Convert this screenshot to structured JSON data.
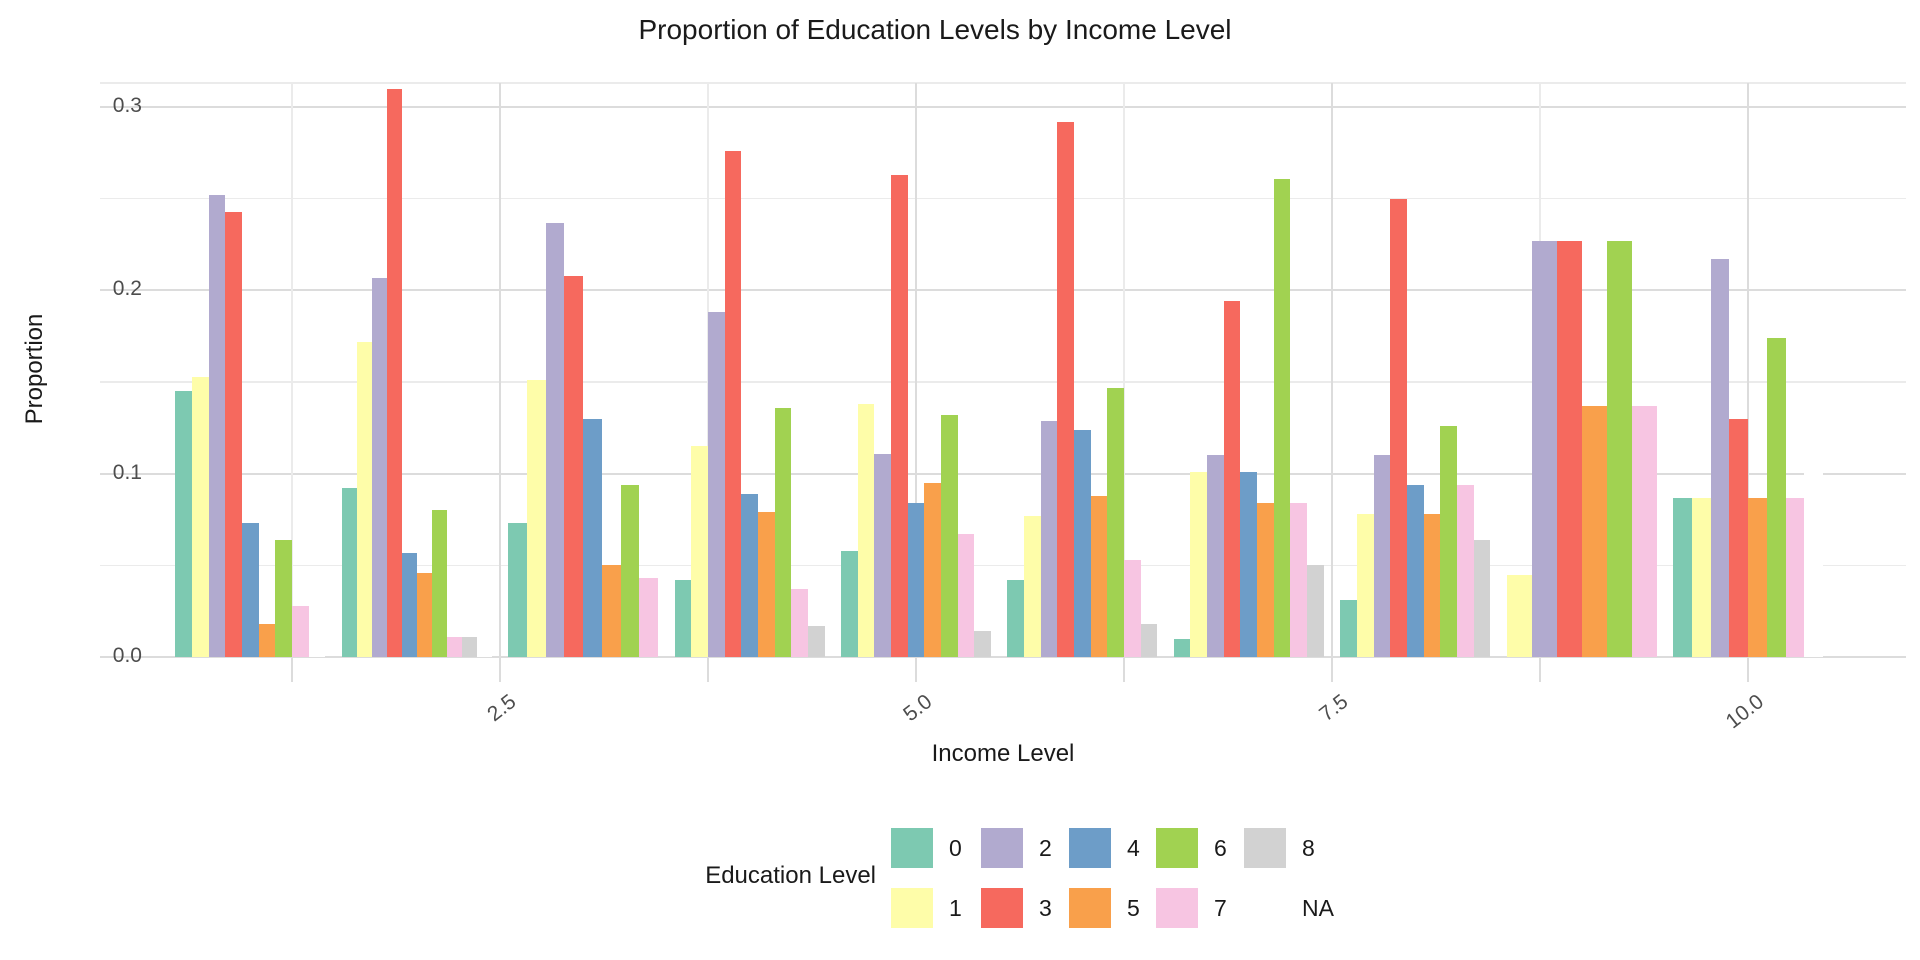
{
  "title": "Proportion of Education Levels by Income Level",
  "y_axis": {
    "title": "Proportion",
    "tick_labels": [
      "0.0",
      "0.1",
      "0.2",
      "0.3"
    ],
    "tick_values": [
      0.0,
      0.1,
      0.2,
      0.3
    ],
    "minor_values": [
      0.05,
      0.15,
      0.25
    ]
  },
  "x_axis": {
    "title": "Income Level",
    "tick_labels": [
      "2.5",
      "5.0",
      "7.5",
      "10.0"
    ],
    "tick_values": [
      2.5,
      5.0,
      7.5,
      10.0
    ],
    "minor_values": [
      1.25,
      3.75,
      6.25,
      8.75
    ],
    "small_tick_values": [
      1.25,
      2.5,
      3.75,
      5.0,
      6.25,
      7.5,
      8.75,
      10.0
    ]
  },
  "legend": {
    "title": "Education Level",
    "entries": [
      {
        "label": "0",
        "color": "#7DC9B1"
      },
      {
        "label": "1",
        "color": "#FEFDA9"
      },
      {
        "label": "2",
        "color": "#B1AACF"
      },
      {
        "label": "3",
        "color": "#F6695E"
      },
      {
        "label": "4",
        "color": "#6D9DC8"
      },
      {
        "label": "5",
        "color": "#F9A04B"
      },
      {
        "label": "6",
        "color": "#A1D251"
      },
      {
        "label": "7",
        "color": "#F7C5E2"
      },
      {
        "label": "8",
        "color": "#D2D2D2"
      },
      {
        "label": "NA",
        "color": "#FFFFFF"
      }
    ]
  },
  "chart_data": {
    "type": "bar",
    "title": "Proportion of Education Levels by Income Level",
    "xlabel": "Income Level",
    "ylabel": "Proportion",
    "ylim": [
      0,
      0.31
    ],
    "xlim": [
      0.55,
      10.95
    ],
    "grid": true,
    "legend_position": "bottom",
    "series_name": "Education Level",
    "groups": [
      {
        "income": 1,
        "bars": [
          {
            "level": "0",
            "value": 0.145
          },
          {
            "level": "1",
            "value": 0.153
          },
          {
            "level": "2",
            "value": 0.252
          },
          {
            "level": "3",
            "value": 0.243
          },
          {
            "level": "4",
            "value": 0.073
          },
          {
            "level": "5",
            "value": 0.018
          },
          {
            "level": "6",
            "value": 0.064
          },
          {
            "level": "7",
            "value": 0.028
          },
          {
            "level": "NA",
            "value": 0.018
          }
        ]
      },
      {
        "income": 2,
        "bars": [
          {
            "level": "0",
            "value": 0.092
          },
          {
            "level": "1",
            "value": 0.172
          },
          {
            "level": "2",
            "value": 0.207
          },
          {
            "level": "3",
            "value": 0.31
          },
          {
            "level": "4",
            "value": 0.057
          },
          {
            "level": "5",
            "value": 0.046
          },
          {
            "level": "6",
            "value": 0.08
          },
          {
            "level": "7",
            "value": 0.011
          },
          {
            "level": "8",
            "value": 0.011
          },
          {
            "level": "NA",
            "value": 0.011
          }
        ]
      },
      {
        "income": 3,
        "bars": [
          {
            "level": "0",
            "value": 0.073
          },
          {
            "level": "1",
            "value": 0.151
          },
          {
            "level": "2",
            "value": 0.237
          },
          {
            "level": "3",
            "value": 0.208
          },
          {
            "level": "4",
            "value": 0.13
          },
          {
            "level": "5",
            "value": 0.05
          },
          {
            "level": "6",
            "value": 0.094
          },
          {
            "level": "7",
            "value": 0.043
          }
        ]
      },
      {
        "income": 4,
        "bars": [
          {
            "level": "0",
            "value": 0.042
          },
          {
            "level": "1",
            "value": 0.115
          },
          {
            "level": "2",
            "value": 0.188
          },
          {
            "level": "3",
            "value": 0.276
          },
          {
            "level": "4",
            "value": 0.089
          },
          {
            "level": "5",
            "value": 0.079
          },
          {
            "level": "6",
            "value": 0.136
          },
          {
            "level": "7",
            "value": 0.037
          },
          {
            "level": "8",
            "value": 0.017
          }
        ]
      },
      {
        "income": 5,
        "bars": [
          {
            "level": "0",
            "value": 0.058
          },
          {
            "level": "1",
            "value": 0.138
          },
          {
            "level": "2",
            "value": 0.111
          },
          {
            "level": "3",
            "value": 0.263
          },
          {
            "level": "4",
            "value": 0.084
          },
          {
            "level": "5",
            "value": 0.095
          },
          {
            "level": "6",
            "value": 0.132
          },
          {
            "level": "7",
            "value": 0.067
          },
          {
            "level": "8",
            "value": 0.014
          }
        ]
      },
      {
        "income": 6,
        "bars": [
          {
            "level": "0",
            "value": 0.042
          },
          {
            "level": "1",
            "value": 0.077
          },
          {
            "level": "2",
            "value": 0.129
          },
          {
            "level": "3",
            "value": 0.292
          },
          {
            "level": "4",
            "value": 0.124
          },
          {
            "level": "5",
            "value": 0.088
          },
          {
            "level": "6",
            "value": 0.147
          },
          {
            "level": "7",
            "value": 0.053
          },
          {
            "level": "8",
            "value": 0.018
          }
        ]
      },
      {
        "income": 7,
        "bars": [
          {
            "level": "0",
            "value": 0.01
          },
          {
            "level": "1",
            "value": 0.101
          },
          {
            "level": "2",
            "value": 0.11
          },
          {
            "level": "3",
            "value": 0.194
          },
          {
            "level": "4",
            "value": 0.101
          },
          {
            "level": "5",
            "value": 0.084
          },
          {
            "level": "6",
            "value": 0.261
          },
          {
            "level": "7",
            "value": 0.084
          },
          {
            "level": "8",
            "value": 0.05
          }
        ]
      },
      {
        "income": 8,
        "bars": [
          {
            "level": "0",
            "value": 0.031
          },
          {
            "level": "1",
            "value": 0.078
          },
          {
            "level": "2",
            "value": 0.11
          },
          {
            "level": "3",
            "value": 0.25
          },
          {
            "level": "4",
            "value": 0.094
          },
          {
            "level": "5",
            "value": 0.078
          },
          {
            "level": "6",
            "value": 0.126
          },
          {
            "level": "7",
            "value": 0.094
          },
          {
            "level": "8",
            "value": 0.064
          }
        ]
      },
      {
        "income": 9,
        "bars": [
          {
            "level": "1",
            "value": 0.045
          },
          {
            "level": "2",
            "value": 0.227
          },
          {
            "level": "3",
            "value": 0.227
          },
          {
            "level": "5",
            "value": 0.137
          },
          {
            "level": "6",
            "value": 0.227
          },
          {
            "level": "7",
            "value": 0.137
          }
        ]
      },
      {
        "income": 10,
        "bars": [
          {
            "level": "0",
            "value": 0.087
          },
          {
            "level": "1",
            "value": 0.087
          },
          {
            "level": "2",
            "value": 0.217
          },
          {
            "level": "3",
            "value": 0.13
          },
          {
            "level": "5",
            "value": 0.087
          },
          {
            "level": "6",
            "value": 0.174
          },
          {
            "level": "7",
            "value": 0.087
          },
          {
            "level": "NA",
            "value": 0.13
          }
        ]
      }
    ]
  }
}
